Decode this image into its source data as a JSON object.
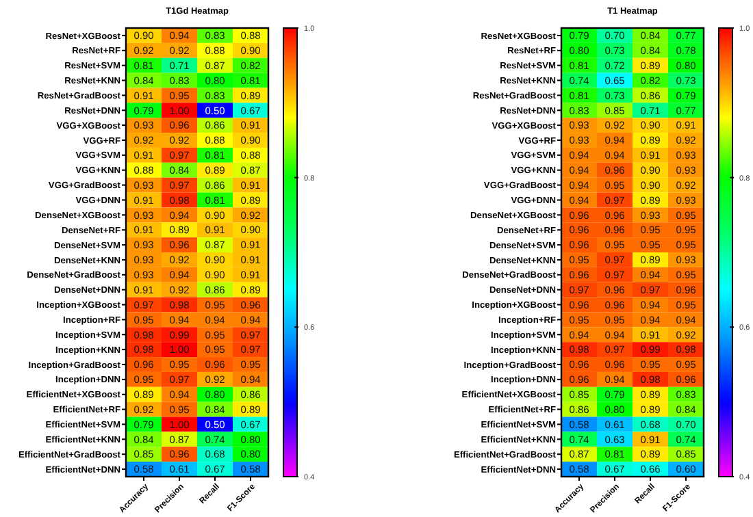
{
  "chart_data": [
    {
      "type": "heatmap",
      "title": "T1Gd Heatmap",
      "categories": [
        "Accuracy",
        "Precision",
        "Recall",
        "F1-Score"
      ],
      "y_categories": [
        "ResNet+XGBoost",
        "ResNet+RF",
        "ResNet+SVM",
        "ResNet+KNN",
        "ResNet+GradBoost",
        "ResNet+DNN",
        "VGG+XGBoost",
        "VGG+RF",
        "VGG+SVM",
        "VGG+KNN",
        "VGG+GradBoost",
        "VGG+DNN",
        "DenseNet+XGBoost",
        "DenseNet+RF",
        "DenseNet+SVM",
        "DenseNet+KNN",
        "DenseNet+GradBoost",
        "DenseNet+DNN",
        "Inception+XGBoost",
        "Inception+RF",
        "Inception+SVM",
        "Inception+KNN",
        "Inception+GradBoost",
        "Inception+DNN",
        "EfficientNet+XGBoost",
        "EfficientNet+RF",
        "EfficientNet+SVM",
        "EfficientNet+KNN",
        "EfficientNet+GradBoost",
        "EfficientNet+DNN"
      ],
      "cells": [
        [
          0.9,
          0.94,
          0.83,
          0.88
        ],
        [
          0.92,
          0.92,
          0.88,
          0.9
        ],
        [
          0.81,
          0.71,
          0.87,
          0.82
        ],
        [
          0.84,
          0.83,
          0.8,
          0.81
        ],
        [
          0.91,
          0.95,
          0.83,
          0.89
        ],
        [
          0.79,
          1,
          0.5,
          0.67
        ],
        [
          0.93,
          0.96,
          0.86,
          0.91
        ],
        [
          0.92,
          0.92,
          0.88,
          0.9
        ],
        [
          0.91,
          0.97,
          0.81,
          0.88
        ],
        [
          0.88,
          0.84,
          0.89,
          0.87
        ],
        [
          0.93,
          0.97,
          0.86,
          0.91
        ],
        [
          0.91,
          0.98,
          0.81,
          0.89
        ],
        [
          0.93,
          0.94,
          0.9,
          0.92
        ],
        [
          0.91,
          0.89,
          0.91,
          0.9
        ],
        [
          0.93,
          0.96,
          0.87,
          0.91
        ],
        [
          0.93,
          0.92,
          0.9,
          0.91
        ],
        [
          0.93,
          0.94,
          0.9,
          0.91
        ],
        [
          0.91,
          0.92,
          0.86,
          0.89
        ],
        [
          0.97,
          0.98,
          0.95,
          0.96
        ],
        [
          0.95,
          0.94,
          0.94,
          0.94
        ],
        [
          0.98,
          0.99,
          0.95,
          0.97
        ],
        [
          0.98,
          1,
          0.95,
          0.97
        ],
        [
          0.96,
          0.95,
          0.96,
          0.95
        ],
        [
          0.95,
          0.97,
          0.92,
          0.94
        ],
        [
          0.89,
          0.94,
          0.8,
          0.86
        ],
        [
          0.92,
          0.95,
          0.84,
          0.89
        ],
        [
          0.79,
          1,
          0.5,
          0.67
        ],
        [
          0.84,
          0.87,
          0.74,
          0.8
        ],
        [
          0.85,
          0.96,
          0.68,
          0.8
        ],
        [
          0.58,
          0.61,
          0.67,
          0.58
        ]
      ],
      "cell_labels": [
        [
          "0.90",
          "0.94",
          "0.83",
          "0.88"
        ],
        [
          "0.92",
          "0.92",
          "0.88",
          "0.90"
        ],
        [
          "0.81",
          "0.71",
          "0.87",
          "0.82"
        ],
        [
          "0.84",
          "0.83",
          "0.80",
          "0.81"
        ],
        [
          "0.91",
          "0.95",
          "0.83",
          "0.89"
        ],
        [
          "0.79",
          "1.00",
          "0.50",
          "0.67"
        ],
        [
          "0.93",
          "0.96",
          "0.86",
          "0.91"
        ],
        [
          "0.92",
          "0.92",
          "0.88",
          "0.90"
        ],
        [
          "0.91",
          "0.97",
          "0.81",
          "0.88"
        ],
        [
          "0.88",
          "0.84",
          "0.89",
          "0.87"
        ],
        [
          "0.93",
          "0.97",
          "0.86",
          "0.91"
        ],
        [
          "0.91",
          "0.98",
          "0.81",
          "0.89"
        ],
        [
          "0.93",
          "0.94",
          "0.90",
          "0.92"
        ],
        [
          "0.91",
          "0.89",
          "0.91",
          "0.90"
        ],
        [
          "0.93",
          "0.96",
          "0.87",
          "0.91"
        ],
        [
          "0.93",
          "0.92",
          "0.90",
          "0.91"
        ],
        [
          "0.93",
          "0.94",
          "0.90",
          "0.91"
        ],
        [
          "0.91",
          "0.92",
          "0.86",
          "0.89"
        ],
        [
          "0.97",
          "0.98",
          "0.95",
          "0.96"
        ],
        [
          "0.95",
          "0.94",
          "0.94",
          "0.94"
        ],
        [
          "0.98",
          "0.99",
          "0.95",
          "0.97"
        ],
        [
          "0.98",
          "1.00",
          "0.95",
          "0.97"
        ],
        [
          "0.96",
          "0.95",
          "0.96",
          "0.95"
        ],
        [
          "0.95",
          "0.97",
          "0.92",
          "0.94"
        ],
        [
          "0.89",
          "0.94",
          "0.80",
          "0.86"
        ],
        [
          "0.92",
          "0.95",
          "0.84",
          "0.89"
        ],
        [
          "0.79",
          "1.00",
          "0.50",
          "0.67"
        ],
        [
          "0.84",
          "0.87",
          "0.74",
          "0.80"
        ],
        [
          "0.85",
          "0.96",
          "0.68",
          "0.80"
        ],
        [
          "0.58",
          "0.61",
          "0.67",
          "0.58"
        ]
      ],
      "clim": [
        0.4,
        1
      ],
      "cticks": [
        0.4,
        0.6,
        0.8,
        {
          "value": 1,
          "label": "1.0"
        }
      ]
    },
    {
      "type": "heatmap",
      "title": "T1 Heatmap",
      "categories": [
        "Accuracy",
        "Precision",
        "Recall",
        "F1-Score"
      ],
      "y_categories": [
        "ResNet+XGBoost",
        "ResNet+RF",
        "ResNet+SVM",
        "ResNet+KNN",
        "ResNet+GradBoost",
        "ResNet+DNN",
        "VGG+XGBoost",
        "VGG+RF",
        "VGG+SVM",
        "VGG+KNN",
        "VGG+GradBoost",
        "VGG+DNN",
        "DenseNet+XGBoost",
        "DenseNet+RF",
        "DenseNet+SVM",
        "DenseNet+KNN",
        "DenseNet+GradBoost",
        "DenseNet+DNN",
        "Inception+XGBoost",
        "Inception+RF",
        "Inception+SVM",
        "Inception+KNN",
        "Inception+GradBoost",
        "Inception+DNN",
        "EfficientNet+XGBoost",
        "EfficientNet+RF",
        "EfficientNet+SVM",
        "EfficientNet+KNN",
        "EfficientNet+GradBoost",
        "EfficientNet+DNN"
      ],
      "cells": [
        [
          0.79,
          0.7,
          0.84,
          0.77
        ],
        [
          0.8,
          0.73,
          0.84,
          0.78
        ],
        [
          0.81,
          0.72,
          0.89,
          0.8
        ],
        [
          0.74,
          0.65,
          0.82,
          0.73
        ],
        [
          0.81,
          0.73,
          0.86,
          0.79
        ],
        [
          0.83,
          0.85,
          0.71,
          0.77
        ],
        [
          0.93,
          0.92,
          0.9,
          0.91
        ],
        [
          0.93,
          0.94,
          0.89,
          0.92
        ],
        [
          0.94,
          0.94,
          0.91,
          0.93
        ],
        [
          0.94,
          0.96,
          0.9,
          0.93
        ],
        [
          0.94,
          0.95,
          0.9,
          0.92
        ],
        [
          0.94,
          0.97,
          0.89,
          0.93
        ],
        [
          0.96,
          0.96,
          0.93,
          0.95
        ],
        [
          0.96,
          0.96,
          0.95,
          0.95
        ],
        [
          0.96,
          0.95,
          0.95,
          0.95
        ],
        [
          0.95,
          0.97,
          0.89,
          0.93
        ],
        [
          0.96,
          0.97,
          0.94,
          0.95
        ],
        [
          0.97,
          0.96,
          0.97,
          0.96
        ],
        [
          0.96,
          0.96,
          0.94,
          0.95
        ],
        [
          0.95,
          0.95,
          0.94,
          0.94
        ],
        [
          0.94,
          0.94,
          0.91,
          0.92
        ],
        [
          0.98,
          0.97,
          0.99,
          0.98
        ],
        [
          0.96,
          0.96,
          0.95,
          0.95
        ],
        [
          0.96,
          0.94,
          0.98,
          0.96
        ],
        [
          0.85,
          0.79,
          0.89,
          0.83
        ],
        [
          0.86,
          0.8,
          0.89,
          0.84
        ],
        [
          0.58,
          0.61,
          0.68,
          0.7
        ],
        [
          0.74,
          0.63,
          0.91,
          0.74
        ],
        [
          0.87,
          0.81,
          0.89,
          0.85
        ],
        [
          0.58,
          0.67,
          0.66,
          0.6
        ]
      ],
      "cell_labels": [
        [
          "0.79",
          "0.70",
          "0.84",
          "0.77"
        ],
        [
          "0.80",
          "0.73",
          "0.84",
          "0.78"
        ],
        [
          "0.81",
          "0.72",
          "0.89",
          "0.80"
        ],
        [
          "0.74",
          "0.65",
          "0.82",
          "0.73"
        ],
        [
          "0.81",
          "0.73",
          "0.86",
          "0.79"
        ],
        [
          "0.83",
          "0.85",
          "0.71",
          "0.77"
        ],
        [
          "0.93",
          "0.92",
          "0.90",
          "0.91"
        ],
        [
          "0.93",
          "0.94",
          "0.89",
          "0.92"
        ],
        [
          "0.94",
          "0.94",
          "0.91",
          "0.93"
        ],
        [
          "0.94",
          "0.96",
          "0.90",
          "0.93"
        ],
        [
          "0.94",
          "0.95",
          "0.90",
          "0.92"
        ],
        [
          "0.94",
          "0.97",
          "0.89",
          "0.93"
        ],
        [
          "0.96",
          "0.96",
          "0.93",
          "0.95"
        ],
        [
          "0.96",
          "0.96",
          "0.95",
          "0.95"
        ],
        [
          "0.96",
          "0.95",
          "0.95",
          "0.95"
        ],
        [
          "0.95",
          "0.97",
          "0.89",
          "0.93"
        ],
        [
          "0.96",
          "0.97",
          "0.94",
          "0.95"
        ],
        [
          "0.97",
          "0.96",
          "0.97",
          "0.96"
        ],
        [
          "0.96",
          "0.96",
          "0.94",
          "0.95"
        ],
        [
          "0.95",
          "0.95",
          "0.94",
          "0.94"
        ],
        [
          "0.94",
          "0.94",
          "0.91",
          "0.92"
        ],
        [
          "0.98",
          "0.97",
          "0.99",
          "0.98"
        ],
        [
          "0.96",
          "0.96",
          "0.95",
          "0.95"
        ],
        [
          "0.96",
          "0.94",
          "0.98",
          "0.96"
        ],
        [
          "0.85",
          "0.79",
          "0.89",
          "0.83"
        ],
        [
          "0.86",
          "0.80",
          "0.89",
          "0.84"
        ],
        [
          "0.58",
          "0.61",
          "0.68",
          "0.70"
        ],
        [
          "0.74",
          "0.63",
          "0.91",
          "0.74"
        ],
        [
          "0.87",
          "0.81",
          "0.89",
          "0.85"
        ],
        [
          "0.58",
          "0.67",
          "0.66",
          "0.60"
        ]
      ],
      "clim": [
        0.4,
        1
      ],
      "cticks": [
        0.4,
        0.6,
        0.8,
        {
          "value": 1,
          "label": "1.0"
        }
      ]
    }
  ]
}
